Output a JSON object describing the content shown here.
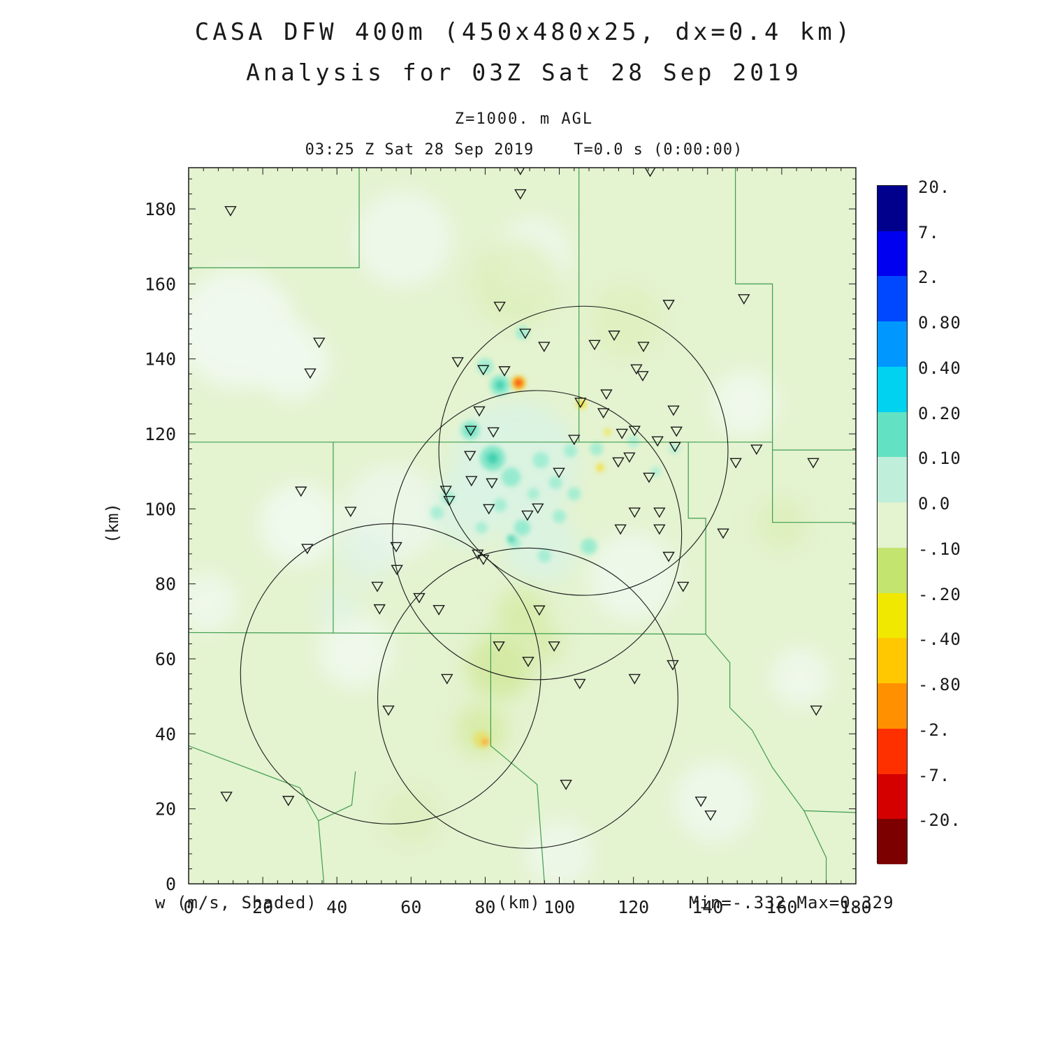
{
  "header": {
    "title": "CASA DFW 400m (450x480x25, dx=0.4 km)",
    "subtitle": "Analysis for 03Z Sat 28 Sep 2019",
    "level": "Z=1000. m AGL",
    "time_line": "03:25 Z Sat 28 Sep 2019    T=0.0 s (0:00:00)"
  },
  "footer": {
    "field_label": "w (m/s, Shaded)",
    "minmax": "Min=-.332 Max=0.329"
  },
  "chart_data": {
    "type": "heatmap",
    "title": "CASA DFW 400m (450x480x25, dx=0.4 km)",
    "subtitle": "Analysis for 03Z Sat 28 Sep 2019",
    "field": "w (m/s, Shaded)",
    "level": "Z=1000. m AGL",
    "valid_time": "03:25 Z Sat 28 Sep 2019",
    "forecast_time": "T=0.0 s (0:00:00)",
    "xlabel": "(km)",
    "ylabel": "(km)",
    "xlim": [
      0,
      180
    ],
    "ylim": [
      0,
      191
    ],
    "x_ticks": [
      0,
      20,
      40,
      60,
      80,
      100,
      120,
      140,
      160,
      180
    ],
    "y_ticks": [
      0,
      20,
      40,
      60,
      80,
      100,
      120,
      140,
      160,
      180
    ],
    "minor_tick_step": 4,
    "field_min": -0.332,
    "field_max": 0.329,
    "background_color": "#e4f3d0",
    "county_line_color": "#3f9e4f",
    "colorbar": {
      "labels": [
        "20.",
        "7.",
        "2.",
        "0.80",
        "0.40",
        "0.20",
        "0.10",
        "0.0",
        "-.10",
        "-.20",
        "-.40",
        "-.80",
        "-2.",
        "-7.",
        "-20."
      ],
      "colors": [
        "#00008c",
        "#0000f0",
        "#0048ff",
        "#0098ff",
        "#00d2f0",
        "#62e2c2",
        "#bfeeda",
        "#e4f3d0",
        "#c4e470",
        "#f0e800",
        "#ffc800",
        "#ff9000",
        "#ff3000",
        "#d40000",
        "#7c0000"
      ]
    },
    "radars": [
      [
        106.5,
        115.5,
        39
      ],
      [
        94,
        93,
        39
      ],
      [
        54.5,
        56,
        40.5
      ],
      [
        91.5,
        49.5,
        40.5
      ]
    ],
    "stations": [
      [
        11.3,
        179.5
      ],
      [
        89.5,
        190.5
      ],
      [
        89.5,
        184
      ],
      [
        124.5,
        190
      ],
      [
        83.9,
        154
      ],
      [
        129.5,
        154.5
      ],
      [
        149.8,
        156
      ],
      [
        35.2,
        144.4
      ],
      [
        90.8,
        146.8
      ],
      [
        95.9,
        143.3
      ],
      [
        109.5,
        143.8
      ],
      [
        114.8,
        146.3
      ],
      [
        122.7,
        143.3
      ],
      [
        32.8,
        136.2
      ],
      [
        72.6,
        139.2
      ],
      [
        79.5,
        137.1
      ],
      [
        85.2,
        136.8
      ],
      [
        120.8,
        137.3
      ],
      [
        122.5,
        135.5
      ],
      [
        112.7,
        130.6
      ],
      [
        105.7,
        128.4
      ],
      [
        78.4,
        126.1
      ],
      [
        111.9,
        125.6
      ],
      [
        130.8,
        126.3
      ],
      [
        76.1,
        120.9
      ],
      [
        82.2,
        120.5
      ],
      [
        116.9,
        120.1
      ],
      [
        120.3,
        120.9
      ],
      [
        126.5,
        118.1
      ],
      [
        104.0,
        118.5
      ],
      [
        131.6,
        120.7
      ],
      [
        131.2,
        116.6
      ],
      [
        153.2,
        115.9
      ],
      [
        75.9,
        114.2
      ],
      [
        115.9,
        112.5
      ],
      [
        118.9,
        113.8
      ],
      [
        147.6,
        112.3
      ],
      [
        168.5,
        112.3
      ],
      [
        76.3,
        107.5
      ],
      [
        81.8,
        106.9
      ],
      [
        124.2,
        108.4
      ],
      [
        30.3,
        104.7
      ],
      [
        69.4,
        104.9
      ],
      [
        70.3,
        102.2
      ],
      [
        99.9,
        109.7
      ],
      [
        43.7,
        99.3
      ],
      [
        81.0,
        100.0
      ],
      [
        91.4,
        98.3
      ],
      [
        94.2,
        100.2
      ],
      [
        120.3,
        99.1
      ],
      [
        127.0,
        99.1
      ],
      [
        116.5,
        94.6
      ],
      [
        127.0,
        94.6
      ],
      [
        144.2,
        93.5
      ],
      [
        32.0,
        89.4
      ],
      [
        56.0,
        89.9
      ],
      [
        129.5,
        87.3
      ],
      [
        78.0,
        87.9
      ],
      [
        79.5,
        86.5
      ],
      [
        56.2,
        83.8
      ],
      [
        50.9,
        79.3
      ],
      [
        133.4,
        79.3
      ],
      [
        62.2,
        76.3
      ],
      [
        67.5,
        73.1
      ],
      [
        94.6,
        73.0
      ],
      [
        51.5,
        73.3
      ],
      [
        83.7,
        63.4
      ],
      [
        98.6,
        63.4
      ],
      [
        91.6,
        59.3
      ],
      [
        130.6,
        58.4
      ],
      [
        69.7,
        54.7
      ],
      [
        105.5,
        53.4
      ],
      [
        120.3,
        54.7
      ],
      [
        53.9,
        46.3
      ],
      [
        169.3,
        46.3
      ],
      [
        10.2,
        23.3
      ],
      [
        26.9,
        22.2
      ],
      [
        101.8,
        26.5
      ],
      [
        138.2,
        22.0
      ],
      [
        140.8,
        18.3
      ]
    ],
    "county_lines": [
      [
        [
          46,
          191
        ],
        [
          46,
          164.3
        ],
        [
          0,
          164.3
        ]
      ],
      [
        [
          105.3,
          191
        ],
        [
          105.3,
          117.8
        ]
      ],
      [
        [
          147.5,
          191
        ],
        [
          147.5,
          160
        ],
        [
          157.5,
          160
        ],
        [
          157.5,
          96.4
        ],
        [
          180,
          96.4
        ]
      ],
      [
        [
          0,
          117.8
        ],
        [
          157.5,
          117.8
        ]
      ],
      [
        [
          157.5,
          115.7
        ],
        [
          180,
          115.7
        ]
      ],
      [
        [
          39,
          117.8
        ],
        [
          39,
          67
        ]
      ],
      [
        [
          0,
          67
        ],
        [
          139.5,
          66.6
        ]
      ],
      [
        [
          81.5,
          67
        ],
        [
          81.5,
          36.8
        ],
        [
          94,
          26.5
        ],
        [
          96,
          0
        ]
      ],
      [
        [
          134.8,
          117.8
        ],
        [
          134.8,
          97.5
        ],
        [
          139.5,
          97.5
        ],
        [
          139.5,
          66.6
        ]
      ],
      [
        [
          139.5,
          66.6
        ],
        [
          146,
          59
        ],
        [
          146,
          47
        ],
        [
          152,
          41
        ],
        [
          157.5,
          31
        ],
        [
          166,
          19.5
        ],
        [
          172,
          7
        ],
        [
          172,
          0
        ]
      ],
      [
        [
          166,
          19.5
        ],
        [
          180,
          19
        ]
      ],
      [
        [
          0,
          36.8
        ],
        [
          30,
          25.6
        ],
        [
          35,
          16.8
        ],
        [
          36.5,
          0
        ]
      ],
      [
        [
          35,
          16.8
        ],
        [
          44,
          21
        ],
        [
          45,
          30
        ]
      ]
    ],
    "field_blobs": [
      {
        "x": 13,
        "y": 148,
        "r": 16,
        "c": "#f1f9ef",
        "o": 0.95,
        "s": "soft"
      },
      {
        "x": 28,
        "y": 139,
        "r": 10,
        "c": "#f1f9ef",
        "o": 0.9,
        "s": "soft"
      },
      {
        "x": 58,
        "y": 172,
        "r": 13,
        "c": "#eef8ec",
        "o": 0.9,
        "s": "soft"
      },
      {
        "x": 93,
        "y": 168,
        "r": 10,
        "c": "#eef8ec",
        "o": 0.85,
        "s": "soft"
      },
      {
        "x": 30,
        "y": 96,
        "r": 11,
        "c": "#f1f9ef",
        "o": 0.9,
        "s": "soft"
      },
      {
        "x": 55,
        "y": 99,
        "r": 13,
        "c": "#edf7ea",
        "o": 0.9,
        "s": "soft"
      },
      {
        "x": 45,
        "y": 62,
        "r": 10,
        "c": "#f1f9ef",
        "o": 0.85,
        "s": "soft"
      },
      {
        "x": 120,
        "y": 82,
        "r": 12,
        "c": "#eef8ec",
        "o": 0.9,
        "s": "soft"
      },
      {
        "x": 150,
        "y": 128,
        "r": 9,
        "c": "#f1f9ef",
        "o": 0.85,
        "s": "soft"
      },
      {
        "x": 142,
        "y": 22,
        "r": 11,
        "c": "#eef8ec",
        "o": 0.9,
        "s": "soft"
      },
      {
        "x": 100,
        "y": 8,
        "r": 9,
        "c": "#eef8ec",
        "o": 0.85,
        "s": "soft"
      },
      {
        "x": 165,
        "y": 55,
        "r": 8,
        "c": "#f1f9ef",
        "o": 0.8,
        "s": "soft"
      },
      {
        "x": 5,
        "y": 75,
        "r": 8,
        "c": "#f1f9ef",
        "o": 0.8,
        "s": "soft"
      },
      {
        "x": 88,
        "y": 112,
        "r": 17,
        "c": "#d9f3e6",
        "o": 0.8,
        "s": "soft"
      },
      {
        "x": 75,
        "y": 100,
        "r": 10,
        "c": "#daf3e6",
        "o": 0.75,
        "s": "soft"
      },
      {
        "x": 95,
        "y": 90,
        "r": 10,
        "c": "#daf3e6",
        "o": 0.75,
        "s": "soft"
      },
      {
        "x": 48,
        "y": 88,
        "r": 8,
        "c": "#dff4e8",
        "o": 0.7,
        "s": "soft"
      },
      {
        "x": 40,
        "y": 74,
        "r": 6,
        "c": "#dff4e8",
        "o": 0.6,
        "s": "soft"
      },
      {
        "x": 84,
        "y": 58,
        "r": 9,
        "c": "#cfe795",
        "o": 0.75,
        "s": "soft"
      },
      {
        "x": 90,
        "y": 72,
        "r": 7,
        "c": "#d2e99c",
        "o": 0.7,
        "s": "soft"
      },
      {
        "x": 79,
        "y": 41,
        "r": 7,
        "c": "#d4ea9e",
        "o": 0.75,
        "s": "soft"
      },
      {
        "x": 96,
        "y": 64,
        "r": 5,
        "c": "#d2e99c",
        "o": 0.6,
        "s": "soft"
      },
      {
        "x": 88,
        "y": 160,
        "r": 12,
        "c": "#dceeb4",
        "o": 0.6,
        "s": "soft"
      },
      {
        "x": 118,
        "y": 150,
        "r": 10,
        "c": "#dceeb4",
        "o": 0.55,
        "s": "soft"
      },
      {
        "x": 160,
        "y": 96,
        "r": 7,
        "c": "#d9edae",
        "o": 0.55,
        "s": "soft"
      },
      {
        "x": 60,
        "y": 18,
        "r": 8,
        "c": "#dceeb4",
        "o": 0.5,
        "s": "soft"
      },
      {
        "x": 84,
        "y": 133,
        "r": 2.8,
        "c": "#8feacd",
        "o": 0.95,
        "s": "sharp"
      },
      {
        "x": 80,
        "y": 138,
        "r": 2.2,
        "c": "#9becd1",
        "o": 0.9,
        "s": "sharp"
      },
      {
        "x": 90,
        "y": 147,
        "r": 1.8,
        "c": "#9becd1",
        "o": 0.9,
        "s": "sharp"
      },
      {
        "x": 76,
        "y": 121,
        "r": 2.6,
        "c": "#8feacd",
        "o": 0.95,
        "s": "sharp"
      },
      {
        "x": 82,
        "y": 113.5,
        "r": 3.4,
        "c": "#7fe6c6",
        "o": 0.95,
        "s": "sharp"
      },
      {
        "x": 87,
        "y": 108.5,
        "r": 2.6,
        "c": "#8feacd",
        "o": 0.9,
        "s": "sharp"
      },
      {
        "x": 95,
        "y": 113,
        "r": 2.2,
        "c": "#9becd1",
        "o": 0.9,
        "s": "sharp"
      },
      {
        "x": 103,
        "y": 115.5,
        "r": 1.8,
        "c": "#9becd1",
        "o": 0.85,
        "s": "sharp"
      },
      {
        "x": 110,
        "y": 116,
        "r": 1.8,
        "c": "#9becd1",
        "o": 0.85,
        "s": "sharp"
      },
      {
        "x": 90,
        "y": 95,
        "r": 2.2,
        "c": "#8feacd",
        "o": 0.9,
        "s": "sharp"
      },
      {
        "x": 100,
        "y": 98,
        "r": 1.8,
        "c": "#9becd1",
        "o": 0.85,
        "s": "sharp"
      },
      {
        "x": 108,
        "y": 90,
        "r": 2.2,
        "c": "#8feacd",
        "o": 0.85,
        "s": "sharp"
      },
      {
        "x": 96,
        "y": 87.5,
        "r": 1.8,
        "c": "#9becd1",
        "o": 0.85,
        "s": "sharp"
      },
      {
        "x": 104,
        "y": 104,
        "r": 1.8,
        "c": "#9becd1",
        "o": 0.85,
        "s": "sharp"
      },
      {
        "x": 70,
        "y": 103,
        "r": 1.8,
        "c": "#9becd1",
        "o": 0.85,
        "s": "sharp"
      },
      {
        "x": 67,
        "y": 99,
        "r": 1.8,
        "c": "#9becd1",
        "o": 0.8,
        "s": "sharp"
      },
      {
        "x": 120,
        "y": 118,
        "r": 1.6,
        "c": "#a5eed5",
        "o": 0.8,
        "s": "sharp"
      },
      {
        "x": 126,
        "y": 110,
        "r": 1.4,
        "c": "#a5eed5",
        "o": 0.75,
        "s": "sharp"
      },
      {
        "x": 131,
        "y": 116,
        "r": 1.4,
        "c": "#a5eed5",
        "o": 0.75,
        "s": "sharp"
      },
      {
        "x": 99,
        "y": 107,
        "r": 1.8,
        "c": "#9becd1",
        "o": 0.85,
        "s": "sharp"
      },
      {
        "x": 93,
        "y": 104,
        "r": 1.6,
        "c": "#9becd1",
        "o": 0.8,
        "s": "sharp"
      },
      {
        "x": 84,
        "y": 101,
        "r": 1.8,
        "c": "#9becd1",
        "o": 0.85,
        "s": "sharp"
      },
      {
        "x": 88,
        "y": 91,
        "r": 1.6,
        "c": "#9becd1",
        "o": 0.8,
        "s": "sharp"
      },
      {
        "x": 79,
        "y": 95,
        "r": 1.6,
        "c": "#9becd1",
        "o": 0.8,
        "s": "sharp"
      },
      {
        "x": 82,
        "y": 113.5,
        "r": 1.5,
        "c": "#3ecfae",
        "o": 0.95,
        "s": "sharp"
      },
      {
        "x": 84,
        "y": 133,
        "r": 1.3,
        "c": "#3ecfae",
        "o": 0.9,
        "s": "sharp"
      },
      {
        "x": 76,
        "y": 121,
        "r": 1.1,
        "c": "#49d4b2",
        "o": 0.9,
        "s": "sharp"
      },
      {
        "x": 87,
        "y": 92,
        "r": 1.1,
        "c": "#49d4b2",
        "o": 0.85,
        "s": "sharp"
      },
      {
        "x": 106,
        "y": 128,
        "r": 1.3,
        "c": "#f2df3a",
        "o": 0.95,
        "s": "sharp"
      },
      {
        "x": 111,
        "y": 111,
        "r": 1.1,
        "c": "#f2df3a",
        "o": 0.9,
        "s": "sharp"
      },
      {
        "x": 113,
        "y": 120.5,
        "r": 0.9,
        "c": "#f2df3a",
        "o": 0.8,
        "s": "sharp"
      },
      {
        "x": 89,
        "y": 133.6,
        "r": 1.9,
        "c": "#f5c31e",
        "o": 0.95,
        "s": "sharp"
      },
      {
        "x": 89,
        "y": 133.6,
        "r": 1.0,
        "c": "#ff4010",
        "o": 0.95,
        "s": "sharp"
      },
      {
        "x": 79,
        "y": 38.5,
        "r": 2.3,
        "c": "#e8e06a",
        "o": 0.85,
        "s": "sharp"
      },
      {
        "x": 80,
        "y": 37.8,
        "r": 0.9,
        "c": "#ffa030",
        "o": 0.9,
        "s": "sharp"
      }
    ]
  }
}
